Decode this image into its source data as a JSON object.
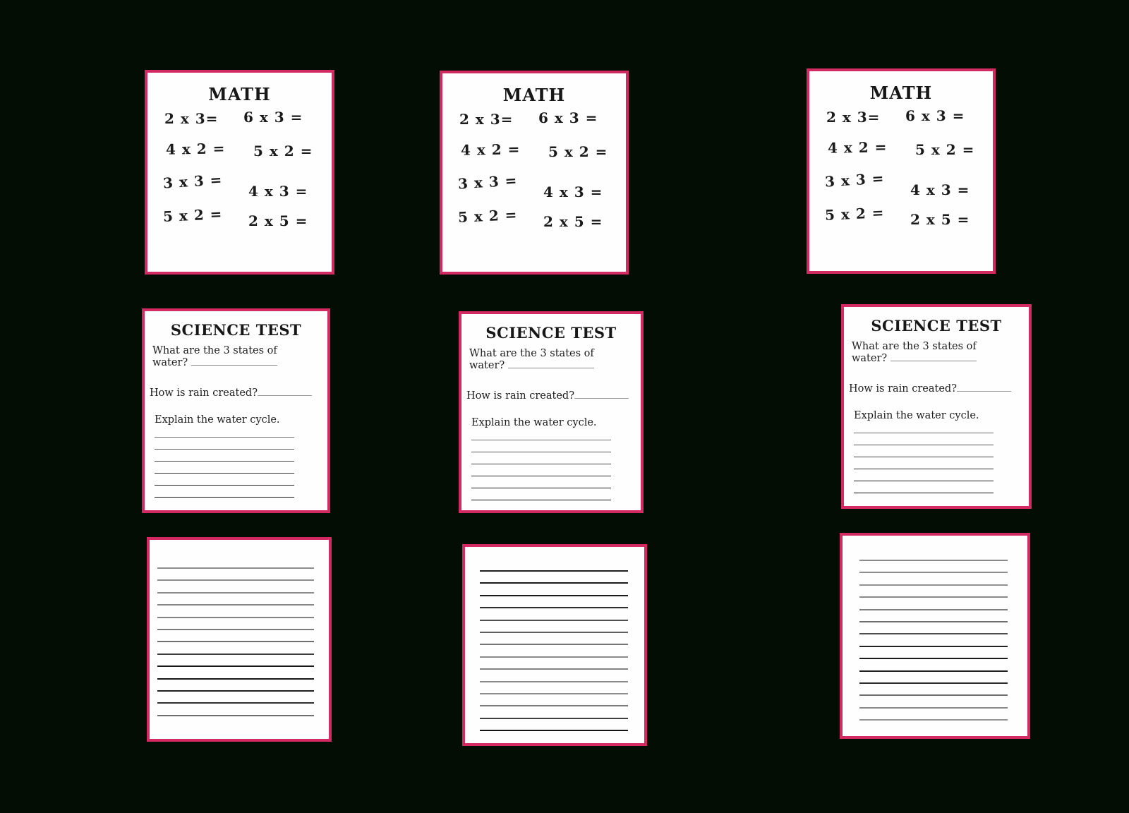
{
  "page": {
    "background_color": "#040d03",
    "card_border_color": "#d42a63",
    "card_background_color": "#fefefe"
  },
  "math": {
    "title": "MATH",
    "problems": [
      "2 x 3=",
      "6 x 3 =",
      "4 x 2 =",
      "5 x 2 =",
      "3 x 3 =",
      "4 x 3 =",
      "5 x 2 =",
      "2 x 5 ="
    ]
  },
  "science": {
    "title": "SCIENCE TEST",
    "question1_line1": "What are the 3 states of",
    "question1_line2": "water?",
    "question2": "How is rain created?",
    "question3": "Explain the water cycle.",
    "answer_line_colors": [
      "#6a6a6a",
      "#5a5a5a",
      "#474747",
      "#303030",
      "#1e1e1e",
      "#121212"
    ]
  },
  "lined_paper": {
    "sheet1": {
      "line_colors": [
        "#8e8e8e",
        "#8e8e8e",
        "#8b8b8b",
        "#878787",
        "#838383",
        "#7c7c7c",
        "#6e6e6e",
        "#3c3c3c",
        "#161616",
        "#161616",
        "#1e1e1e",
        "#2e2e2e",
        "#6f6f6f"
      ]
    },
    "sheet2": {
      "line_colors": [
        "#1f1f1f",
        "#1b1b1b",
        "#1b1b1b",
        "#2b2b2b",
        "#4f4f4f",
        "#5f5f5f",
        "#757575",
        "#8a8a8a",
        "#828282",
        "#8a8a8a",
        "#8e8e8e",
        "#7a7a7a",
        "#3f3f3f",
        "#141414"
      ]
    },
    "sheet3": {
      "line_colors": [
        "#8b8b8b",
        "#8e8e8e",
        "#919191",
        "#8a8a8a",
        "#7f7f7f",
        "#6e6e6e",
        "#4e4e4e",
        "#222222",
        "#181818",
        "#202020",
        "#2e2e2e",
        "#6f6f6f",
        "#8a8a8a",
        "#949494"
      ]
    }
  }
}
